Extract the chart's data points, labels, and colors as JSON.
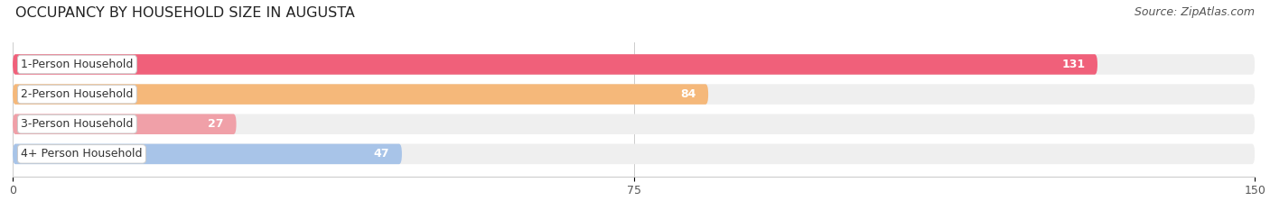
{
  "title": "OCCUPANCY BY HOUSEHOLD SIZE IN AUGUSTA",
  "source": "Source: ZipAtlas.com",
  "categories": [
    "1-Person Household",
    "2-Person Household",
    "3-Person Household",
    "4+ Person Household"
  ],
  "values": [
    131,
    84,
    27,
    47
  ],
  "bar_colors": [
    "#f0607a",
    "#f5b87a",
    "#f0a0a8",
    "#a8c4e8"
  ],
  "bar_track_color": "#efefef",
  "xlim": [
    0,
    150
  ],
  "xticks": [
    0,
    75,
    150
  ],
  "background_color": "#ffffff",
  "title_fontsize": 11.5,
  "source_fontsize": 9,
  "label_fontsize": 9,
  "value_fontsize": 9,
  "bar_height": 0.68,
  "label_box_color": "#ffffff",
  "label_box_edge_color": "#cccccc",
  "value_inside_color": "#ffffff",
  "value_outside_color": "#555555",
  "inside_threshold": 20
}
